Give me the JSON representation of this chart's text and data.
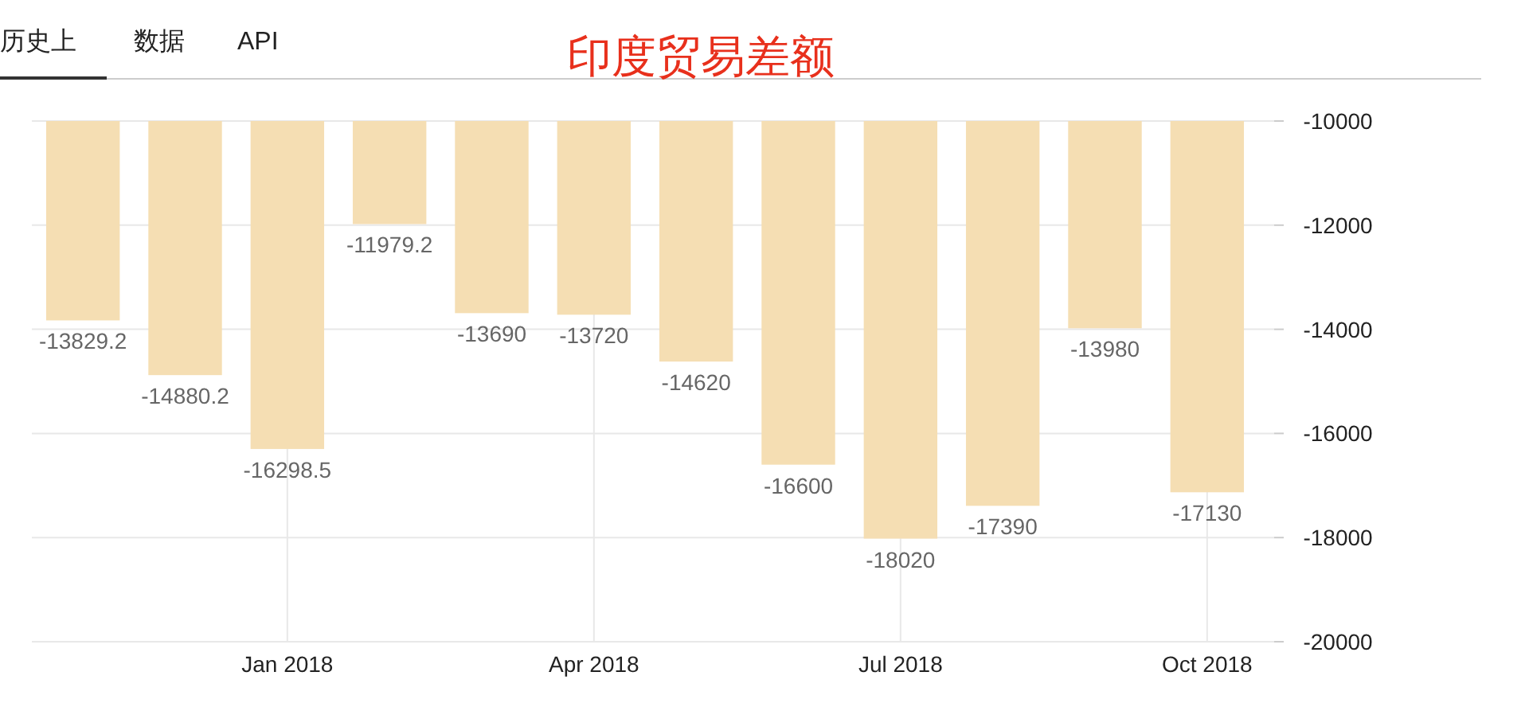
{
  "chart_data": {
    "type": "bar",
    "title": "印度贸易差额",
    "annotations": [
      "历史上",
      "数据",
      "API"
    ],
    "categories": [
      null,
      null,
      "Jan 2018",
      null,
      null,
      "Apr 2018",
      null,
      null,
      "Jul 2018",
      null,
      null,
      "Oct 2018"
    ],
    "values": [
      -13829.2,
      -14880.2,
      -16298.5,
      -11979.2,
      -13690,
      -13720,
      -14620,
      -16600,
      -18020,
      -17390,
      -13980,
      -17130
    ],
    "color": "#f5deb3",
    "ylim": [
      -20000,
      -10000
    ],
    "yticks": [
      -20000,
      -18000,
      -16000,
      -14000,
      -12000,
      -10000
    ],
    "grid": true,
    "data_labels": true
  }
}
